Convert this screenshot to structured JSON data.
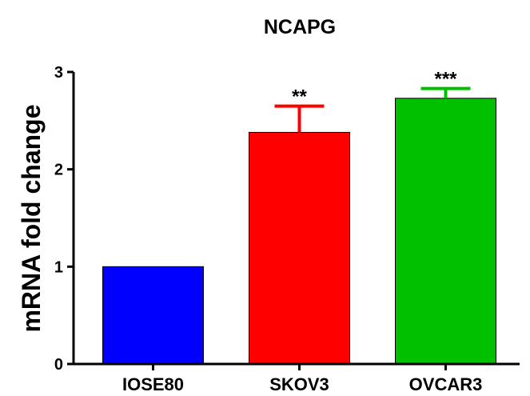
{
  "chart_data": {
    "type": "bar",
    "title": "NCAPG",
    "xlabel": "",
    "ylabel": "mRNA fold change",
    "ylim": [
      0,
      3
    ],
    "yticks": [
      0,
      1,
      2,
      3
    ],
    "categories": [
      "IOSE80",
      "SKOV3",
      "OVCAR3"
    ],
    "values": [
      1.0,
      2.38,
      2.73
    ],
    "errors": [
      0,
      0.27,
      0.1
    ],
    "significance": [
      "",
      "**",
      "***"
    ],
    "colors": [
      "#0000ff",
      "#ff0000",
      "#00c000"
    ],
    "grid": false,
    "legend": "none"
  }
}
